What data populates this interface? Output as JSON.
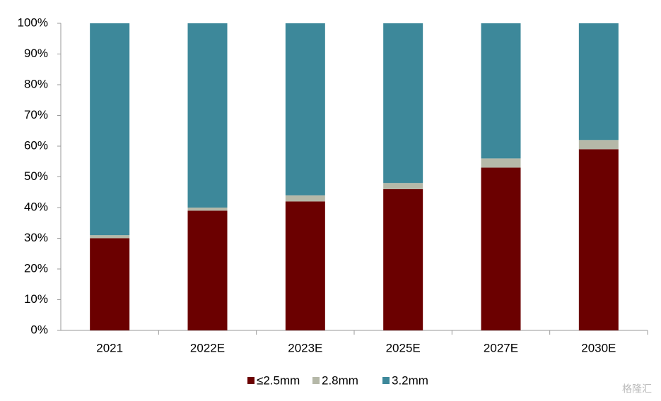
{
  "chart_data": {
    "type": "stacked_bar",
    "categories": [
      "2021",
      "2022E",
      "2023E",
      "2025E",
      "2027E",
      "2030E"
    ],
    "series": [
      {
        "name": "≤2.5mm",
        "color": "#6b0000",
        "values": [
          30,
          39,
          42,
          46,
          53,
          59
        ]
      },
      {
        "name": "2.8mm",
        "color": "#b5b8a8",
        "values": [
          1,
          1,
          2,
          2,
          3,
          3
        ]
      },
      {
        "name": "3.2mm",
        "color": "#3d889a",
        "values": [
          69,
          60,
          56,
          52,
          44,
          38
        ]
      }
    ],
    "ylim": [
      0,
      100
    ],
    "yticks": [
      {
        "value": 0,
        "label": "0%"
      },
      {
        "value": 10,
        "label": "10%"
      },
      {
        "value": 20,
        "label": "20%"
      },
      {
        "value": 30,
        "label": "30%"
      },
      {
        "value": 40,
        "label": "40%"
      },
      {
        "value": 50,
        "label": "50%"
      },
      {
        "value": 60,
        "label": "60%"
      },
      {
        "value": 70,
        "label": "70%"
      },
      {
        "value": 80,
        "label": "80%"
      },
      {
        "value": 90,
        "label": "90%"
      },
      {
        "value": 100,
        "label": "100%"
      }
    ],
    "legend": "bottom",
    "watermark": "格隆汇"
  }
}
